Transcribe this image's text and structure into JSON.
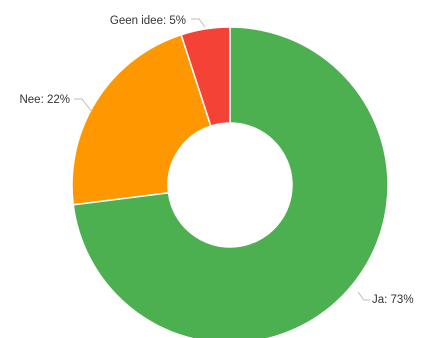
{
  "chart_data": {
    "type": "pie",
    "donut": true,
    "title": "",
    "legend": "none",
    "slices": [
      {
        "label": "Ja",
        "value": 73,
        "color": "#4caf50",
        "label_text": "Ja: 73%"
      },
      {
        "label": "Geen idee",
        "value": 5,
        "color": "#f44336",
        "label_text": "Geen idee: 5%"
      },
      {
        "label": "Nee",
        "value": 22,
        "color": "#ff9800",
        "label_text": "Nee: 22%"
      }
    ]
  }
}
